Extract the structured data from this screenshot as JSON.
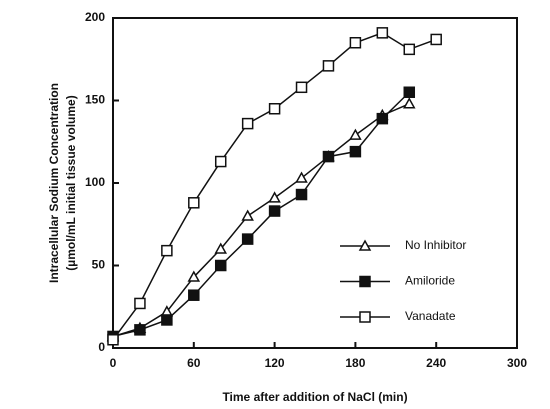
{
  "chart_data": {
    "type": "line",
    "xlabel": "Time after addition of NaCl (min)",
    "ylabel": [
      "Intracellular Sodium Concentration",
      "(µmol/mL initial tissue volume)"
    ],
    "xlim": [
      0,
      300
    ],
    "xticks": [
      0,
      60,
      120,
      180,
      240,
      300
    ],
    "ylim": [
      0,
      200
    ],
    "yticks": [
      0,
      50,
      100,
      150,
      200
    ],
    "legend": "lower right",
    "series": [
      {
        "name": "No Inhibitor",
        "color": "#111111",
        "marker": "triangle-open",
        "x": [
          0,
          20,
          40,
          60,
          80,
          100,
          120,
          140,
          160,
          180,
          200,
          220
        ],
        "values": [
          7,
          12,
          22,
          43,
          60,
          80,
          91,
          103,
          116,
          129,
          141,
          148
        ]
      },
      {
        "name": "Amiloride",
        "color": "#111111",
        "marker": "square-filled",
        "x": [
          0,
          20,
          40,
          60,
          80,
          100,
          120,
          140,
          160,
          180,
          200,
          220
        ],
        "values": [
          7,
          11,
          17,
          32,
          50,
          66,
          83,
          93,
          116,
          119,
          139,
          155
        ]
      },
      {
        "name": "Vanadate",
        "color": "#111111",
        "marker": "square-open",
        "x": [
          0,
          20,
          40,
          60,
          80,
          100,
          120,
          140,
          160,
          180,
          200,
          220,
          240
        ],
        "values": [
          5,
          27,
          59,
          88,
          113,
          136,
          145,
          158,
          171,
          185,
          191,
          181,
          187
        ]
      }
    ]
  }
}
